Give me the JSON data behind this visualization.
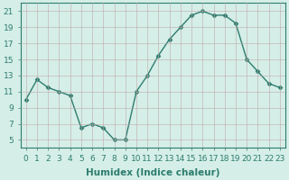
{
  "title": "",
  "xlabel": "Humidex (Indice chaleur)",
  "ylabel": "",
  "x": [
    0,
    1,
    2,
    3,
    4,
    5,
    6,
    7,
    8,
    9,
    10,
    11,
    12,
    13,
    14,
    15,
    16,
    17,
    18,
    19,
    20,
    21,
    22,
    23
  ],
  "y": [
    10,
    12.5,
    11.5,
    11,
    10.5,
    6.5,
    7,
    6.5,
    5,
    5,
    11,
    13,
    15.5,
    17.5,
    19,
    20.5,
    21,
    20.5,
    20.5,
    19.5,
    15,
    13.5,
    12,
    11.5
  ],
  "line_color": "#2d7d6e",
  "marker": "D",
  "marker_size": 2.5,
  "bg_color": "#d5eee8",
  "grid_color": "#c0a8a8",
  "ylim": [
    4,
    22
  ],
  "xlim": [
    -0.5,
    23.5
  ],
  "yticks": [
    5,
    7,
    9,
    11,
    13,
    15,
    17,
    19,
    21
  ],
  "xticks": [
    0,
    1,
    2,
    3,
    4,
    5,
    6,
    7,
    8,
    9,
    10,
    11,
    12,
    13,
    14,
    15,
    16,
    17,
    18,
    19,
    20,
    21,
    22,
    23
  ],
  "xtick_labels": [
    "0",
    "1",
    "2",
    "3",
    "4",
    "5",
    "6",
    "7",
    "8",
    "9",
    "10",
    "11",
    "12",
    "13",
    "14",
    "15",
    "16",
    "17",
    "18",
    "19",
    "20",
    "21",
    "22",
    "23"
  ],
  "xlabel_fontsize": 7.5,
  "tick_fontsize": 6.5
}
